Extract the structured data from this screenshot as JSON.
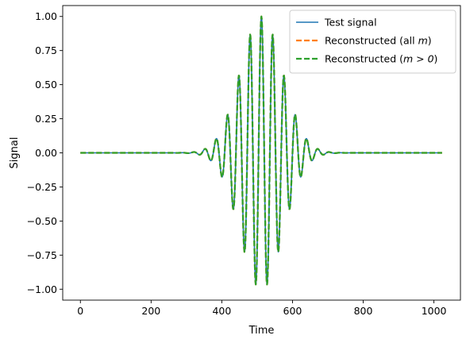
{
  "chart_data": {
    "type": "line",
    "title": "",
    "xlabel": "Time",
    "ylabel": "Signal",
    "xlim": [
      -50,
      1075
    ],
    "ylim": [
      -1.08,
      1.08
    ],
    "xticks": [
      0,
      200,
      400,
      600,
      800,
      1000
    ],
    "xtick_labels": [
      "0",
      "200",
      "400",
      "600",
      "800",
      "1000"
    ],
    "yticks": [
      1.0,
      0.75,
      0.5,
      0.25,
      0.0,
      -0.25,
      -0.5,
      -0.75,
      -1.0
    ],
    "ytick_labels": [
      "1.00",
      "0.75",
      "0.50",
      "0.25",
      "0.00",
      "−0.25",
      "−0.50",
      "−0.75",
      "−1.00"
    ],
    "grid": false,
    "legend_position": "top-right",
    "signal_model": {
      "n_samples": 1024,
      "center": 512,
      "envelope_sigma": 60,
      "period": 32,
      "peak_amplitude": 1.0
    },
    "series": [
      {
        "name": "Test signal",
        "color": "#1f77b4",
        "style": "solid"
      },
      {
        "name": "Reconstructed (all m)",
        "label_parts": [
          "Reconstructed (all ",
          "m",
          ")"
        ],
        "color": "#ff7f0e",
        "style": "dashed"
      },
      {
        "name": "Reconstructed (m > 0)",
        "label_parts": [
          "Reconstructed (",
          "m > 0",
          ")"
        ],
        "color": "#2ca02c",
        "style": "dashed"
      }
    ]
  }
}
